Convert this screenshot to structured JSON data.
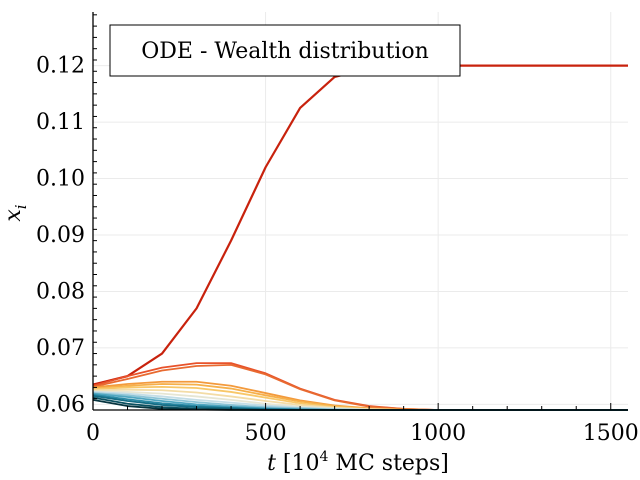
{
  "chart_data": {
    "type": "line",
    "title": "",
    "legend": {
      "label": "ODE - Wealth distribution",
      "placement": "top-left"
    },
    "xlabel": "t [10^4 MC steps]",
    "ylabel": "x_i",
    "xlim": [
      0,
      1550
    ],
    "ylim": [
      0.059,
      0.1295
    ],
    "xticks": [
      0,
      500,
      1000,
      1500
    ],
    "yticks": [
      0.06,
      0.07,
      0.08,
      0.09,
      0.1,
      0.11,
      0.12
    ],
    "ytick_labels": [
      "0.06",
      "0.07",
      "0.08",
      "0.09",
      "0.10",
      "0.11",
      "0.12"
    ],
    "grid": true,
    "x": [
      0,
      100,
      200,
      300,
      400,
      500,
      600,
      700,
      800,
      900,
      1000,
      1100,
      1200,
      1300,
      1400,
      1500,
      1550
    ],
    "series": [
      {
        "color": "#c8220d",
        "values": [
          0.0635,
          0.065,
          0.069,
          0.077,
          0.089,
          0.102,
          0.1125,
          0.118,
          0.1195,
          0.1199,
          0.12,
          0.12,
          0.12,
          0.12,
          0.12,
          0.12,
          0.12
        ]
      },
      {
        "color": "#e8522a",
        "values": [
          0.0633,
          0.065,
          0.0665,
          0.0673,
          0.0673,
          0.0655,
          0.0628,
          0.0608,
          0.0597,
          0.0592,
          0.059,
          0.059,
          0.059,
          0.059,
          0.059,
          0.059,
          0.059
        ]
      },
      {
        "color": "#e86a30",
        "values": [
          0.0631,
          0.0645,
          0.066,
          0.0668,
          0.067,
          0.0653,
          0.0627,
          0.0607,
          0.0596,
          0.0592,
          0.059,
          0.059,
          0.059,
          0.059,
          0.059,
          0.059,
          0.059
        ]
      },
      {
        "color": "#f39a3c",
        "values": [
          0.063,
          0.0636,
          0.064,
          0.064,
          0.0633,
          0.062,
          0.0607,
          0.0598,
          0.0593,
          0.0591,
          0.059,
          0.059,
          0.059,
          0.059,
          0.059,
          0.059,
          0.059
        ]
      },
      {
        "color": "#f6b04a",
        "values": [
          0.0628,
          0.0633,
          0.0636,
          0.0635,
          0.0628,
          0.0616,
          0.0605,
          0.0597,
          0.0592,
          0.059,
          0.059,
          0.059,
          0.059,
          0.059,
          0.059,
          0.059,
          0.059
        ]
      },
      {
        "color": "#f8c768",
        "values": [
          0.0627,
          0.063,
          0.0631,
          0.0629,
          0.0622,
          0.0612,
          0.0602,
          0.0595,
          0.0592,
          0.059,
          0.059,
          0.059,
          0.059,
          0.059,
          0.059,
          0.059,
          0.059
        ]
      },
      {
        "color": "#f3dca6",
        "values": [
          0.0625,
          0.0626,
          0.0625,
          0.0621,
          0.0614,
          0.0606,
          0.0599,
          0.0594,
          0.0591,
          0.059,
          0.059,
          0.059,
          0.059,
          0.059,
          0.059,
          0.059,
          0.059
        ]
      },
      {
        "color": "#e6e6d4",
        "values": [
          0.0623,
          0.0622,
          0.0619,
          0.0614,
          0.0608,
          0.0601,
          0.0596,
          0.0593,
          0.0591,
          0.059,
          0.059,
          0.059,
          0.059,
          0.059,
          0.059,
          0.059,
          0.059
        ]
      },
      {
        "color": "#c3dde6",
        "values": [
          0.0622,
          0.0619,
          0.0614,
          0.0608,
          0.0603,
          0.0598,
          0.0594,
          0.0592,
          0.059,
          0.059,
          0.059,
          0.059,
          0.059,
          0.059,
          0.059,
          0.059,
          0.059
        ]
      },
      {
        "color": "#8cc4d6",
        "values": [
          0.062,
          0.0616,
          0.061,
          0.0604,
          0.0599,
          0.0595,
          0.0593,
          0.0591,
          0.059,
          0.059,
          0.059,
          0.059,
          0.059,
          0.059,
          0.059,
          0.059,
          0.059
        ]
      },
      {
        "color": "#4fa6c0",
        "values": [
          0.0619,
          0.0613,
          0.0606,
          0.06,
          0.0596,
          0.0593,
          0.0591,
          0.059,
          0.059,
          0.059,
          0.059,
          0.059,
          0.059,
          0.059,
          0.059,
          0.059,
          0.059
        ]
      },
      {
        "color": "#2a8aa6",
        "values": [
          0.0617,
          0.0609,
          0.0602,
          0.0597,
          0.0594,
          0.0592,
          0.0591,
          0.059,
          0.059,
          0.059,
          0.059,
          0.059,
          0.059,
          0.059,
          0.059,
          0.059,
          0.059
        ]
      },
      {
        "color": "#156d85",
        "values": [
          0.0615,
          0.0606,
          0.0599,
          0.0595,
          0.0593,
          0.0591,
          0.059,
          0.059,
          0.059,
          0.059,
          0.059,
          0.059,
          0.059,
          0.059,
          0.059,
          0.059,
          0.059
        ]
      },
      {
        "color": "#0b5060",
        "values": [
          0.0612,
          0.0601,
          0.0595,
          0.0592,
          0.0591,
          0.059,
          0.059,
          0.059,
          0.059,
          0.059,
          0.059,
          0.059,
          0.059,
          0.059,
          0.059,
          0.059,
          0.059
        ]
      },
      {
        "color": "#06343f",
        "values": [
          0.0608,
          0.0597,
          0.0592,
          0.0591,
          0.059,
          0.059,
          0.059,
          0.059,
          0.059,
          0.059,
          0.059,
          0.059,
          0.059,
          0.059,
          0.059,
          0.059,
          0.059
        ]
      }
    ]
  }
}
